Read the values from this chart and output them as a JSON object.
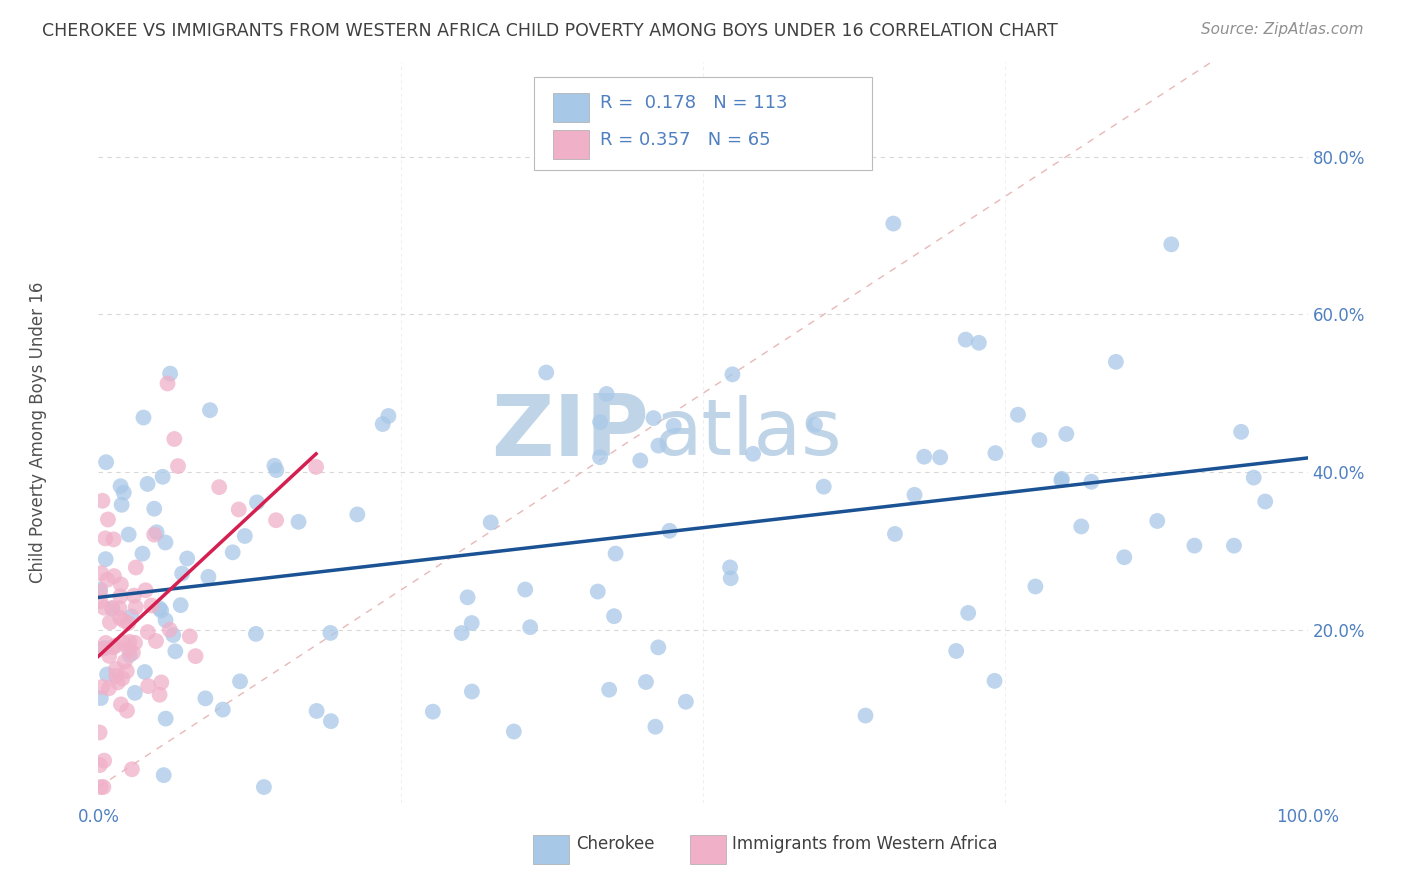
{
  "title": "CHEROKEE VS IMMIGRANTS FROM WESTERN AFRICA CHILD POVERTY AMONG BOYS UNDER 16 CORRELATION CHART",
  "source": "Source: ZipAtlas.com",
  "ylabel": "Child Poverty Among Boys Under 16",
  "legend_label1": "Cherokee",
  "legend_label2": "Immigrants from Western Africa",
  "R1": 0.178,
  "N1": 113,
  "R2": 0.357,
  "N2": 65,
  "xlim": [
    0,
    1
  ],
  "ylim": [
    -0.02,
    0.92
  ],
  "color1": "#a8c8e8",
  "color2": "#f0b0c8",
  "trend1_color": "#1a5294",
  "trend2_color": "#d42050",
  "diag_color": "#e8b8b8",
  "watermark_zip_color": "#c0d4e8",
  "watermark_atlas_color": "#c0d4e8",
  "background": "#ffffff",
  "grid_color": "#d8d8d8",
  "title_color": "#404040",
  "source_color": "#909090",
  "tick_color": "#5080c0",
  "ylabel_color": "#505050"
}
